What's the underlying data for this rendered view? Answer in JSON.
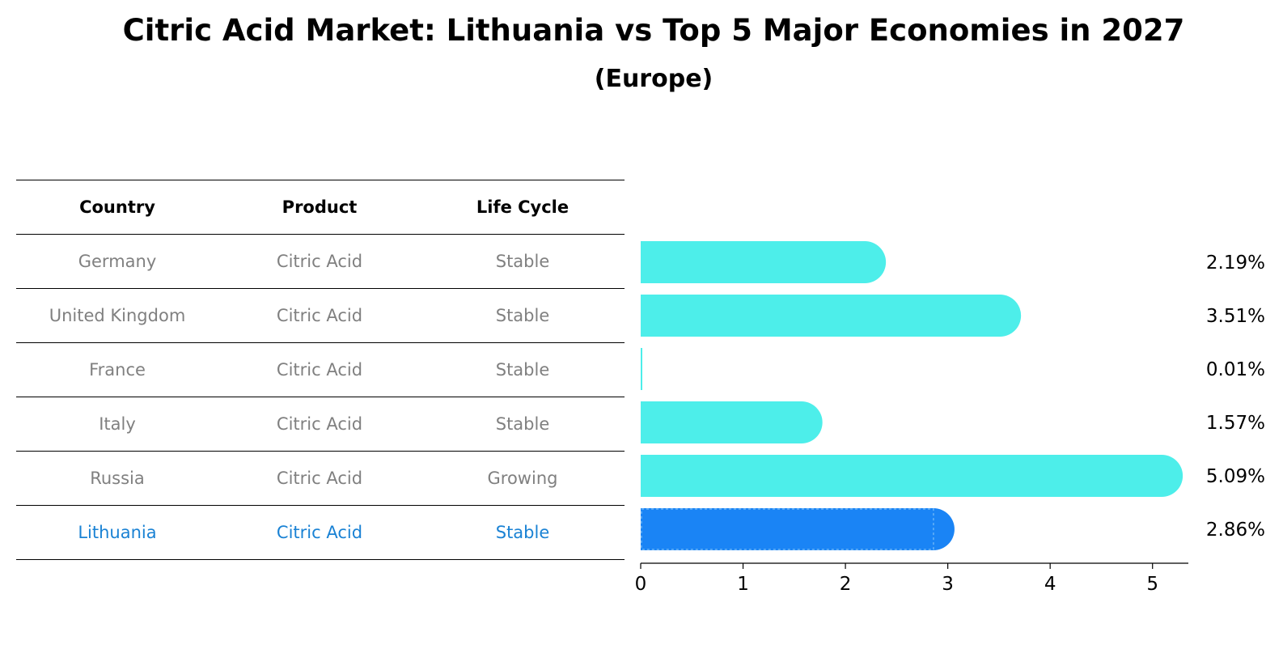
{
  "title": "Citric Acid Market: Lithuania vs Top 5 Major Economies in 2027",
  "subtitle": "(Europe)",
  "table": {
    "headers": [
      "Country",
      "Product",
      "Life Cycle"
    ],
    "rows": [
      [
        "Germany",
        "Citric Acid",
        "Stable"
      ],
      [
        "United Kingdom",
        "Citric Acid",
        "Stable"
      ],
      [
        "France",
        "Citric Acid",
        "Stable"
      ],
      [
        "Italy",
        "Citric Acid",
        "Stable"
      ],
      [
        "Russia",
        "Citric Acid",
        "Growing"
      ],
      [
        "Lithuania",
        "Citric Acid",
        "Stable"
      ]
    ],
    "highlight_row": "Lithuania"
  },
  "chart_data": {
    "type": "bar",
    "orientation": "horizontal",
    "categories": [
      "Germany",
      "United Kingdom",
      "France",
      "Italy",
      "Russia",
      "Lithuania"
    ],
    "values": [
      2.19,
      3.51,
      0.01,
      1.57,
      5.09,
      2.86
    ],
    "value_labels": [
      "2.19%",
      "3.51%",
      "0.01%",
      "1.57%",
      "5.09%",
      "2.86%"
    ],
    "xlim": [
      0,
      5.35
    ],
    "xticks": [
      0,
      1,
      2,
      3,
      4,
      5
    ],
    "xtick_labels": [
      "0",
      "1",
      "2",
      "3",
      "4",
      "5"
    ],
    "highlight_category": "Lithuania",
    "colors": {
      "default": "#4deeea",
      "highlight": "#1a84f5"
    },
    "grid": false,
    "legend": "none"
  },
  "colors": {
    "table_text": "#808080",
    "table_highlight_text": "#1a82d4"
  }
}
